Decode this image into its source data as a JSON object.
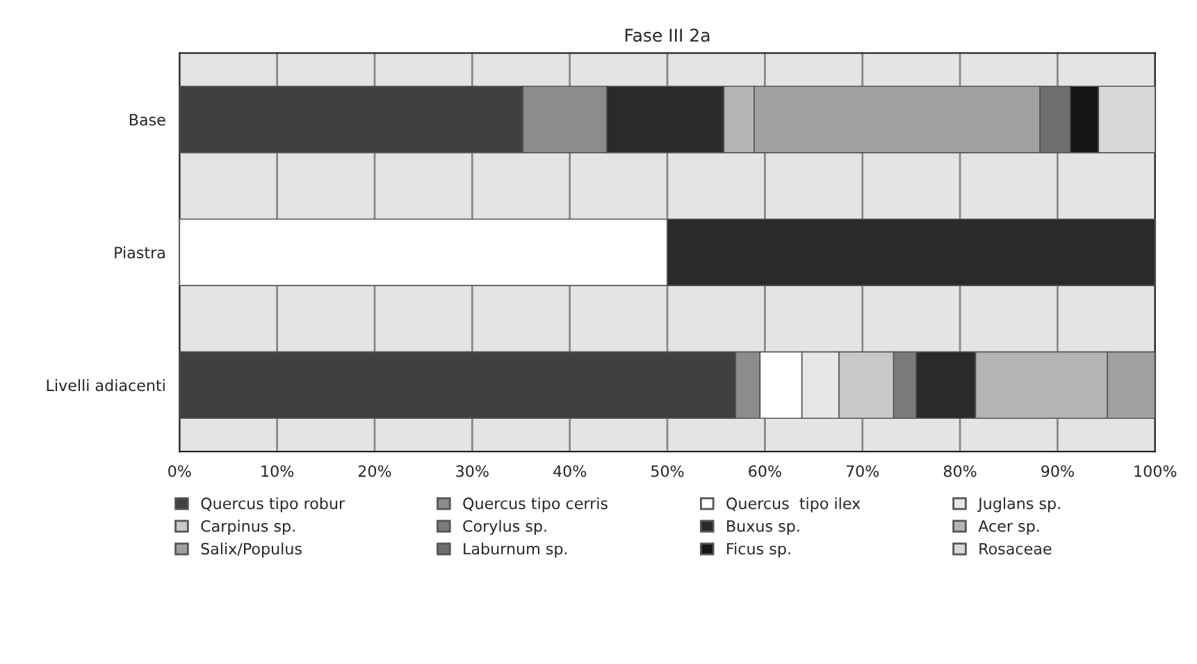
{
  "chart_data": {
    "type": "bar",
    "orientation": "horizontal",
    "stacked": true,
    "title": "Fase III 2a",
    "categories": [
      "Base",
      "Piastra",
      "Livelli adiacenti"
    ],
    "xlim": [
      0,
      100
    ],
    "xticks": [
      {
        "value": 0,
        "label": "0%"
      },
      {
        "value": 10,
        "label": "10%"
      },
      {
        "value": 20,
        "label": "20%"
      },
      {
        "value": 30,
        "label": "30%"
      },
      {
        "value": 40,
        "label": "40%"
      },
      {
        "value": 50,
        "label": "50%"
      },
      {
        "value": 60,
        "label": "60%"
      },
      {
        "value": 70,
        "label": "70%"
      },
      {
        "value": 80,
        "label": "80%"
      },
      {
        "value": 90,
        "label": "90%"
      },
      {
        "value": 100,
        "label": "100%"
      }
    ],
    "grid": "x",
    "legend": "bottom",
    "series": [
      {
        "name": "Quercus tipo robur",
        "color": "#404040",
        "values": [
          35.2,
          null,
          57.0
        ]
      },
      {
        "name": "Quercus tipo cerris",
        "color": "#8c8c8c",
        "values": [
          8.6,
          null,
          2.5
        ]
      },
      {
        "name": "Quercus  tipo ilex",
        "color": "#ffffff",
        "values": [
          null,
          50,
          4.3
        ]
      },
      {
        "name": "Juglans sp.",
        "color": "#e6e6e6",
        "values": [
          null,
          null,
          3.8
        ]
      },
      {
        "name": "Carpinus sp.",
        "color": "#c8c8c8",
        "values": [
          null,
          null,
          5.6
        ]
      },
      {
        "name": "Corylus sp.",
        "color": "#7a7a7a",
        "values": [
          null,
          null,
          2.3
        ]
      },
      {
        "name": "Buxus sp.",
        "color": "#2a2a2a",
        "values": [
          12.0,
          50,
          6.1
        ]
      },
      {
        "name": "Acer sp.",
        "color": "#b4b4b4",
        "values": [
          3.1,
          null,
          13.5
        ]
      },
      {
        "name": "Salix/Populus",
        "color": "#a0a0a0",
        "values": [
          29.3,
          null,
          4.9
        ]
      },
      {
        "name": "Laburnum sp.",
        "color": "#6e6e6e",
        "values": [
          3.1,
          null,
          null
        ]
      },
      {
        "name": "Ficus sp.",
        "color": "#151515",
        "values": [
          2.9,
          null,
          null
        ]
      },
      {
        "name": "Rosaceae",
        "color": "#d8d8d8",
        "values": [
          5.8,
          null,
          null
        ]
      }
    ]
  }
}
